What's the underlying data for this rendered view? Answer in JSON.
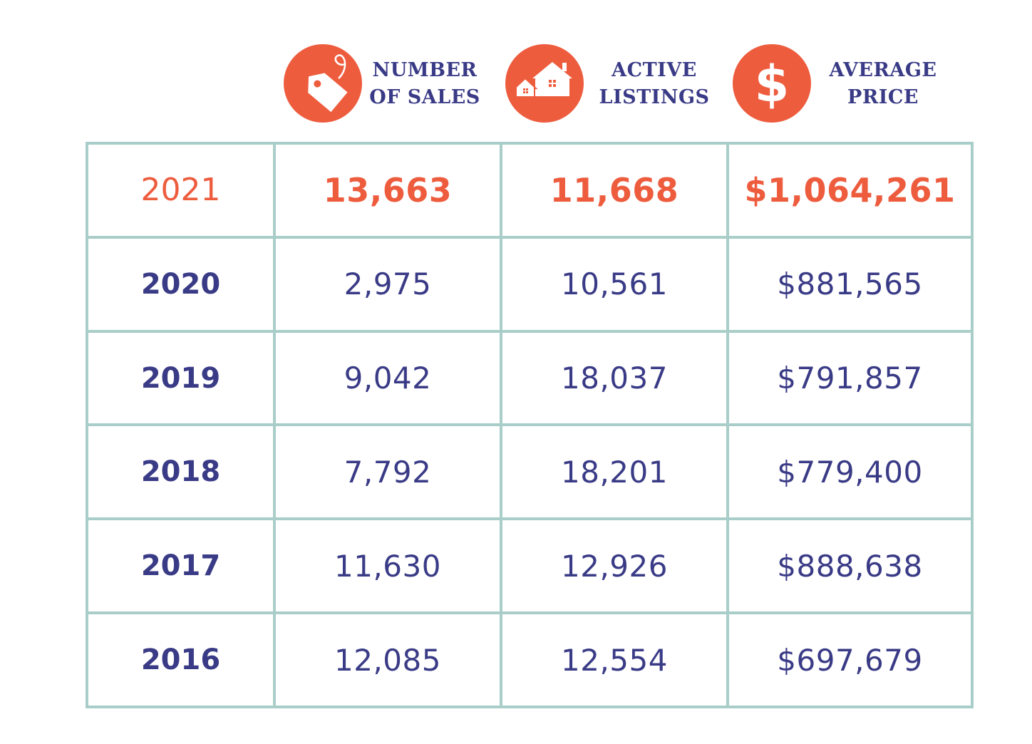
{
  "colors": {
    "accent": "#EE5C3E",
    "text": "#3A3B86",
    "grid": "#A9CDC8"
  },
  "headers": [
    {
      "icon": "price-tag-icon",
      "line1": "NUMBER",
      "line2": "OF SALES"
    },
    {
      "icon": "houses-icon",
      "line1": "ACTIVE",
      "line2": "LISTINGS"
    },
    {
      "icon": "dollar-sign-icon",
      "line1": "AVERAGE",
      "line2": "PRICE"
    }
  ],
  "chart_data": {
    "type": "table",
    "columns": [
      "NUMBER OF SALES",
      "ACTIVE LISTINGS",
      "AVERAGE PRICE"
    ],
    "rows": [
      {
        "year": "2021",
        "sales": "13,663",
        "listings": "11,668",
        "price": "$1,064,261"
      },
      {
        "year": "2020",
        "sales": "2,975",
        "listings": "10,561",
        "price": "$881,565"
      },
      {
        "year": "2019",
        "sales": "9,042",
        "listings": "18,037",
        "price": "$791,857"
      },
      {
        "year": "2018",
        "sales": "7,792",
        "listings": "18,201",
        "price": "$779,400"
      },
      {
        "year": "2017",
        "sales": "11,630",
        "listings": "12,926",
        "price": "$888,638"
      },
      {
        "year": "2016",
        "sales": "12,085",
        "listings": "12,554",
        "price": "$697,679"
      }
    ]
  }
}
